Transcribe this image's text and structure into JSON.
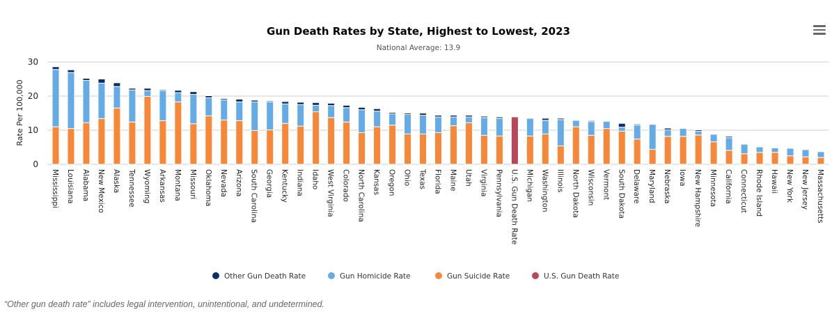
{
  "chart_data": {
    "type": "bar",
    "stacked": true,
    "title": "Gun Death Rates by State, Highest to Lowest, 2023",
    "subtitle": "National Average: 13.9",
    "xlabel": "",
    "ylabel": "Rate Per 100,000",
    "ylim": [
      0,
      30
    ],
    "yticks": [
      "0",
      "10",
      "20",
      "30"
    ],
    "grid": true,
    "legend_position": "bottom",
    "categories": [
      "Mississippi",
      "Louisiana",
      "Alabama",
      "New Mexico",
      "Alaska",
      "Tennessee",
      "Wyoming",
      "Arkansas",
      "Montana",
      "Missouri",
      "Oklahoma",
      "Nevada",
      "Arizona",
      "South Carolina",
      "Georgia",
      "Kentucky",
      "Indiana",
      "Idaho",
      "West Virginia",
      "Colorado",
      "North Carolina",
      "Kansas",
      "Oregon",
      "Ohio",
      "Texas",
      "Florida",
      "Maine",
      "Utah",
      "Virginia",
      "Pennsylvania",
      "U.S. Gun Death Rate",
      "Michigan",
      "Washington",
      "Illinois",
      "North Dakota",
      "Wisconsin",
      "Vermont",
      "South Dakota",
      "Delaware",
      "Maryland",
      "Nebraska",
      "Iowa",
      "New Hampshire",
      "Minnesota",
      "California",
      "Connecticut",
      "Rhode Island",
      "Hawaii",
      "New York",
      "New Jersey",
      "Massachusetts"
    ],
    "series": [
      {
        "name": "Gun Suicide Rate",
        "color": "#f7883a",
        "values": [
          11.0,
          10.5,
          12.2,
          13.4,
          16.5,
          12.4,
          19.9,
          12.8,
          18.3,
          11.9,
          14.2,
          13.0,
          12.8,
          9.9,
          10.1,
          12.0,
          11.2,
          15.4,
          13.7,
          12.4,
          9.3,
          11.0,
          11.5,
          8.9,
          8.9,
          9.3,
          11.3,
          12.2,
          8.5,
          8.3,
          null,
          8.3,
          8.9,
          5.4,
          11.0,
          8.5,
          10.5,
          9.7,
          7.4,
          4.4,
          8.2,
          8.2,
          8.6,
          6.6,
          4.1,
          3.1,
          3.5,
          3.5,
          2.5,
          2.2,
          2.0
        ]
      },
      {
        "name": "Gun Homicide Rate",
        "color": "#65abe6",
        "values": [
          16.8,
          16.4,
          12.4,
          10.4,
          6.3,
          9.4,
          1.7,
          8.8,
          2.7,
          8.6,
          5.3,
          5.9,
          5.5,
          8.4,
          8.2,
          5.7,
          6.3,
          1.9,
          3.5,
          4.2,
          6.7,
          4.6,
          3.3,
          5.7,
          5.5,
          4.6,
          2.6,
          1.7,
          5.2,
          5.2,
          null,
          5.2,
          4.0,
          7.7,
          1.9,
          4.0,
          2.1,
          1.2,
          4.1,
          7.3,
          1.9,
          2.3,
          1.1,
          2.2,
          3.7,
          2.8,
          1.6,
          1.3,
          2.2,
          2.1,
          1.7
        ]
      },
      {
        "name": "Other Gun Death Rate",
        "color": "#0a2d6e",
        "values": [
          0.8,
          0.8,
          0.6,
          1.2,
          1.1,
          0.5,
          0.7,
          0.3,
          0.7,
          0.8,
          0.6,
          0.4,
          0.8,
          0.5,
          0.3,
          0.7,
          0.7,
          0.8,
          0.7,
          0.7,
          0.7,
          0.7,
          0.4,
          0.4,
          0.6,
          0.5,
          0.5,
          0.5,
          0.4,
          0.4,
          null,
          0.2,
          0.6,
          0.4,
          0.2,
          0.3,
          0,
          1.1,
          0.3,
          0,
          0.5,
          0,
          0.4,
          0,
          0.4,
          0,
          0,
          0,
          0,
          0,
          0
        ]
      },
      {
        "name": "U.S. Gun Death Rate",
        "color": "#b84858",
        "values": [
          null,
          null,
          null,
          null,
          null,
          null,
          null,
          null,
          null,
          null,
          null,
          null,
          null,
          null,
          null,
          null,
          null,
          null,
          null,
          null,
          null,
          null,
          null,
          null,
          null,
          null,
          null,
          null,
          null,
          null,
          13.9,
          null,
          null,
          null,
          null,
          null,
          null,
          null,
          null,
          null,
          null,
          null,
          null,
          null,
          null,
          null,
          null,
          null,
          null,
          null,
          null
        ]
      }
    ],
    "legend_order": [
      "Other Gun Death Rate",
      "Gun Homicide Rate",
      "Gun Suicide Rate",
      "U.S. Gun Death Rate"
    ]
  },
  "footnote": "“Other gun death rate” includes legal intervention, unintentional, and undetermined.",
  "menu_icon": "hamburger-menu-icon"
}
